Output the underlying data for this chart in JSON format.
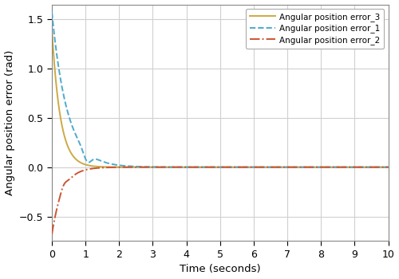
{
  "title": "",
  "xlabel": "Time (seconds)",
  "ylabel": "Angular position error (rad)",
  "xlim": [
    0,
    10
  ],
  "ylim": [
    -0.75,
    1.65
  ],
  "yticks": [
    -0.5,
    0,
    0.5,
    1.0,
    1.5
  ],
  "xticks": [
    0,
    1,
    2,
    3,
    4,
    5,
    6,
    7,
    8,
    9,
    10
  ],
  "legend": [
    {
      "label": "Angular position error_1",
      "color": "#4DAACC",
      "linestyle": "dashed",
      "linewidth": 1.4
    },
    {
      "label": "Angular position error_2",
      "color": "#CC5533",
      "linestyle": "dashdot",
      "linewidth": 1.4
    },
    {
      "label": "Angular position error_3",
      "color": "#CCAA44",
      "linestyle": "solid",
      "linewidth": 1.4
    }
  ],
  "grid_color": "#D0D0D0",
  "background_color": "#FFFFFF",
  "figsize": [
    5.0,
    3.5
  ],
  "dpi": 100
}
